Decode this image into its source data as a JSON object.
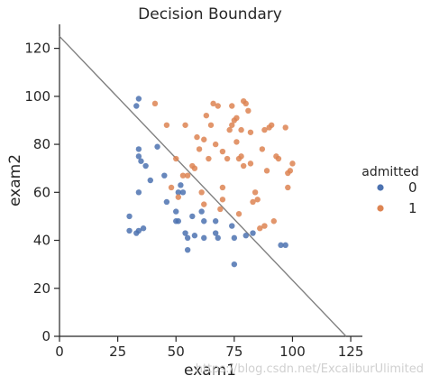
{
  "chart_data": {
    "type": "scatter",
    "title": "Decision Boundary",
    "xlabel": "exam1",
    "ylabel": "exam2",
    "xlim": [
      0,
      130
    ],
    "ylim": [
      0,
      130
    ],
    "xticks": [
      0,
      25,
      50,
      75,
      100,
      125
    ],
    "yticks": [
      0,
      20,
      40,
      60,
      80,
      100,
      120
    ],
    "grid": false,
    "legend": {
      "title": "admitted",
      "placement": "right",
      "entries": [
        {
          "label": "0",
          "color": "#4c72b0"
        },
        {
          "label": "1",
          "color": "#dd8452"
        }
      ]
    },
    "series": [
      {
        "name": "0",
        "color": "#4c72b0",
        "points": [
          [
            33,
            96
          ],
          [
            34,
            99
          ],
          [
            34,
            78
          ],
          [
            35,
            73
          ],
          [
            37,
            71
          ],
          [
            34,
            75
          ],
          [
            34,
            60
          ],
          [
            39,
            65
          ],
          [
            42,
            79
          ],
          [
            45,
            67
          ],
          [
            46,
            56
          ],
          [
            51,
            60
          ],
          [
            52,
            63
          ],
          [
            53,
            60
          ],
          [
            30,
            50
          ],
          [
            30,
            44
          ],
          [
            33,
            43
          ],
          [
            34,
            44
          ],
          [
            36,
            45
          ],
          [
            50,
            52
          ],
          [
            50,
            48
          ],
          [
            51,
            48
          ],
          [
            54,
            43
          ],
          [
            55,
            41
          ],
          [
            55,
            36
          ],
          [
            58,
            42
          ],
          [
            61,
            52
          ],
          [
            62,
            48
          ],
          [
            67,
            48
          ],
          [
            67,
            43
          ],
          [
            68,
            41
          ],
          [
            74,
            46
          ],
          [
            75,
            41
          ],
          [
            75,
            30
          ],
          [
            83,
            43
          ],
          [
            95,
            38
          ],
          [
            97,
            38
          ],
          [
            80,
            42
          ],
          [
            62,
            41
          ],
          [
            57,
            50
          ]
        ]
      },
      {
        "name": "1",
        "color": "#dd8452",
        "points": [
          [
            41,
            97
          ],
          [
            46,
            88
          ],
          [
            48,
            62
          ],
          [
            50,
            74
          ],
          [
            51,
            58
          ],
          [
            53,
            67
          ],
          [
            54,
            88
          ],
          [
            55,
            67
          ],
          [
            57,
            71
          ],
          [
            58,
            70
          ],
          [
            59,
            83
          ],
          [
            60,
            78
          ],
          [
            61,
            60
          ],
          [
            62,
            82
          ],
          [
            62,
            55
          ],
          [
            63,
            92
          ],
          [
            64,
            74
          ],
          [
            65,
            88
          ],
          [
            66,
            97
          ],
          [
            67,
            80
          ],
          [
            68,
            96
          ],
          [
            69,
            53
          ],
          [
            70,
            62
          ],
          [
            70,
            77
          ],
          [
            70,
            57
          ],
          [
            72,
            74
          ],
          [
            73,
            86
          ],
          [
            74,
            96
          ],
          [
            74,
            88
          ],
          [
            75,
            90
          ],
          [
            76,
            91
          ],
          [
            76,
            81
          ],
          [
            77,
            74
          ],
          [
            77,
            51
          ],
          [
            78,
            86
          ],
          [
            78,
            75
          ],
          [
            79,
            71
          ],
          [
            79,
            98
          ],
          [
            80,
            97
          ],
          [
            81,
            94
          ],
          [
            82,
            85
          ],
          [
            82,
            72
          ],
          [
            83,
            56
          ],
          [
            84,
            60
          ],
          [
            85,
            57
          ],
          [
            86,
            45
          ],
          [
            88,
            46
          ],
          [
            88,
            86
          ],
          [
            89,
            69
          ],
          [
            90,
            87
          ],
          [
            91,
            88
          ],
          [
            92,
            48
          ],
          [
            93,
            75
          ],
          [
            94,
            74
          ],
          [
            97,
            87
          ],
          [
            98,
            68
          ],
          [
            98,
            62
          ],
          [
            99,
            69
          ],
          [
            100,
            72
          ],
          [
            87,
            78
          ]
        ]
      }
    ],
    "boundary_line": {
      "x": [
        0,
        123
      ],
      "y": [
        125,
        0
      ],
      "color": "#808080"
    }
  },
  "watermark": "https://blog.csdn.net/ExcaliburUlimited"
}
